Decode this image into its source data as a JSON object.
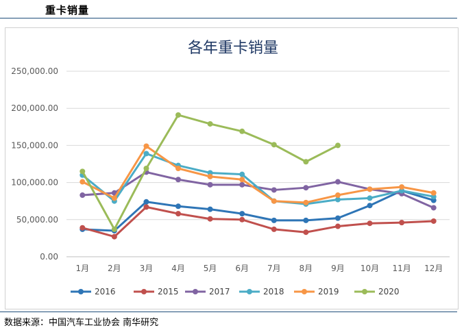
{
  "page": {
    "heading": "重卡销量",
    "source": "数据来源：中国汽车工业协会  南华研究"
  },
  "chart_data": {
    "type": "line",
    "title": "各年重卡销量",
    "xlabel": "",
    "ylabel": "",
    "categories": [
      "1月",
      "2月",
      "3月",
      "4月",
      "5月",
      "6月",
      "7月",
      "8月",
      "9月",
      "10月",
      "11月",
      "12月"
    ],
    "yticks": [
      "0.00",
      "50,000.00",
      "100,000.00",
      "150,000.00",
      "200,000.00",
      "250,000.00"
    ],
    "ylim": [
      0,
      250000
    ],
    "grid": true,
    "legend_position": "bottom",
    "series": [
      {
        "name": "2016",
        "color": "#2e75b6",
        "values": [
          37000,
          35000,
          74000,
          68000,
          64000,
          58000,
          49000,
          49000,
          52000,
          69000,
          89000,
          76000
        ]
      },
      {
        "name": "2015",
        "color": "#c0504d",
        "values": [
          39000,
          27000,
          67000,
          58000,
          51000,
          50000,
          37000,
          33000,
          41000,
          45000,
          46000,
          48000
        ]
      },
      {
        "name": "2017",
        "color": "#8064a2",
        "values": [
          83000,
          86000,
          114000,
          104000,
          97000,
          97000,
          90000,
          93000,
          101000,
          91000,
          85000,
          66000
        ]
      },
      {
        "name": "2018",
        "color": "#4bacc6",
        "values": [
          110000,
          75000,
          139000,
          123000,
          113000,
          111000,
          75000,
          71000,
          77000,
          79000,
          89000,
          81000
        ]
      },
      {
        "name": "2019",
        "color": "#f79646",
        "values": [
          101000,
          79000,
          149000,
          119000,
          108000,
          104000,
          75000,
          73000,
          83000,
          91000,
          94000,
          86000
        ]
      },
      {
        "name": "2020",
        "color": "#9bbb59",
        "values": [
          115000,
          37000,
          119000,
          191000,
          179000,
          169000,
          151000,
          128000,
          150000,
          null,
          null,
          null
        ]
      }
    ]
  }
}
